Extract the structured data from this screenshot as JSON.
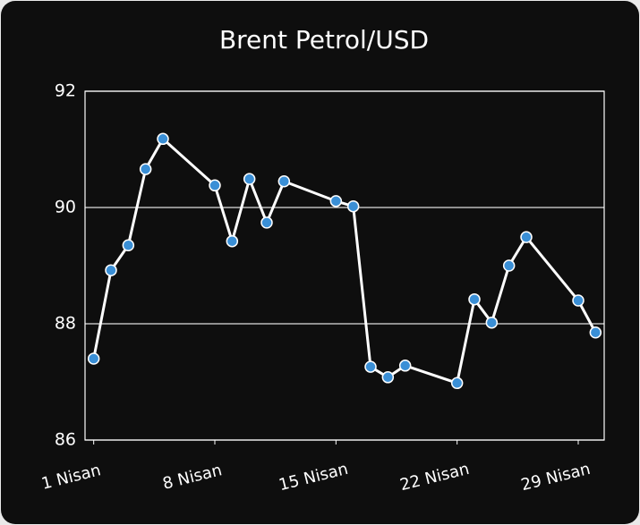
{
  "chart_data": {
    "type": "line",
    "title": "Brent Petrol/USD",
    "x": [
      1,
      2,
      3,
      4,
      5,
      8,
      9,
      10,
      11,
      12,
      15,
      16,
      17,
      18,
      19,
      22,
      23,
      24,
      25,
      26,
      29,
      30
    ],
    "series": [
      {
        "name": "Brent Petrol/USD",
        "color": "#ffffff",
        "marker_color": "#3a8fd6",
        "values": [
          87.4,
          88.92,
          89.35,
          90.66,
          91.18,
          90.38,
          89.42,
          90.49,
          89.74,
          90.45,
          90.11,
          90.02,
          87.26,
          87.08,
          87.28,
          86.98,
          88.42,
          88.02,
          89.0,
          89.49,
          88.4,
          87.85
        ]
      }
    ],
    "xlim": [
      0.5,
      30.5
    ],
    "xticks": [
      {
        "value": 1,
        "label": "1 Nisan"
      },
      {
        "value": 8,
        "label": "8 Nisan"
      },
      {
        "value": 15,
        "label": "15 Nisan"
      },
      {
        "value": 22,
        "label": "22 Nisan"
      },
      {
        "value": 29,
        "label": "29 Nisan"
      }
    ],
    "ylim": [
      86,
      92
    ],
    "yticks": [
      86,
      88,
      90,
      92
    ],
    "grid": true
  }
}
